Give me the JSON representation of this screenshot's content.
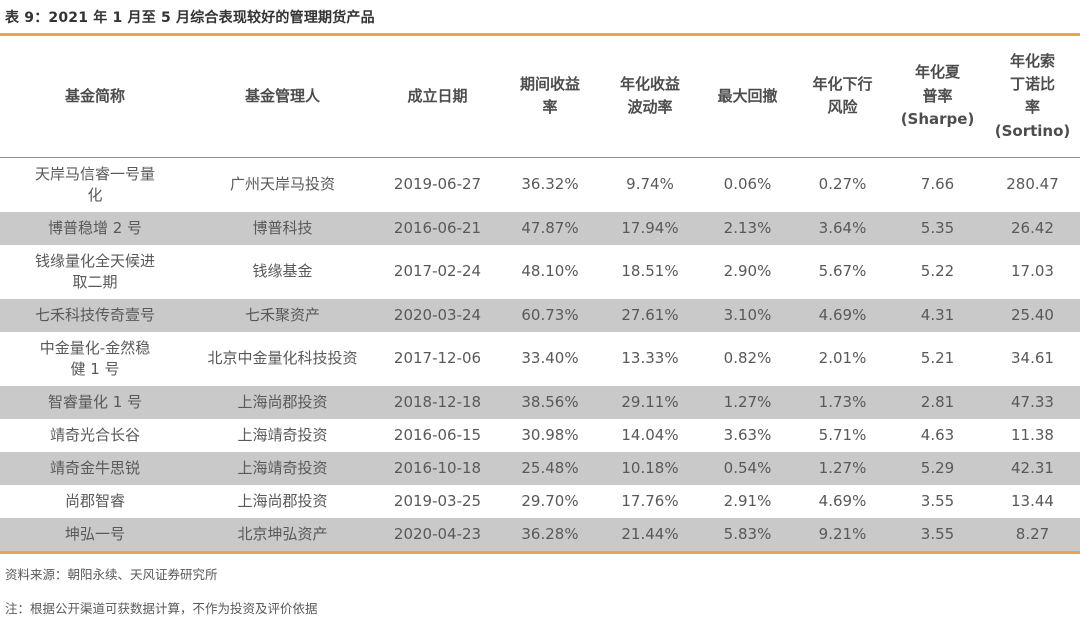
{
  "title": "表 9：2021 年 1 月至 5 月综合表现较好的管理期货产品",
  "source": "资料来源：朝阳永续、天风证券研究所",
  "note": "注：根据公开渠道可获数据计算，不作为投资及评价依据",
  "colors": {
    "accent_orange": "#EFA14E",
    "row_stripe_gray": "#C9C9C9",
    "header_divider_gray": "#8F8F8F",
    "body_text_gray": "#595959",
    "title_text": "#333333"
  },
  "table": {
    "columns": [
      {
        "id": "fund_name",
        "label": "基金简称"
      },
      {
        "id": "manager",
        "label": "基金管理人"
      },
      {
        "id": "inception_date",
        "label": "成立日期"
      },
      {
        "id": "period_return",
        "label": "期间收益\n率"
      },
      {
        "id": "ann_volatility",
        "label": "年化收益\n波动率"
      },
      {
        "id": "max_drawdown",
        "label": "最大回撤"
      },
      {
        "id": "ann_downside_risk",
        "label": "年化下行\n风险"
      },
      {
        "id": "ann_sharpe",
        "label": "年化夏\n普率\n(Sharpe)"
      },
      {
        "id": "ann_sortino",
        "label": "年化索\n丁诺比\n率\n(Sortino)"
      }
    ],
    "rows": [
      [
        "天岸马信睿一号量\n化",
        "广州天岸马投资",
        "2019-06-27",
        "36.32%",
        "9.74%",
        "0.06%",
        "0.27%",
        "7.66",
        "280.47"
      ],
      [
        "博普稳增 2 号",
        "博普科技",
        "2016-06-21",
        "47.87%",
        "17.94%",
        "2.13%",
        "3.64%",
        "5.35",
        "26.42"
      ],
      [
        "钱缘量化全天候进\n取二期",
        "钱缘基金",
        "2017-02-24",
        "48.10%",
        "18.51%",
        "2.90%",
        "5.67%",
        "5.22",
        "17.03"
      ],
      [
        "七禾科技传奇壹号",
        "七禾聚资产",
        "2020-03-24",
        "60.73%",
        "27.61%",
        "3.10%",
        "4.69%",
        "4.31",
        "25.40"
      ],
      [
        "中金量化-金然稳\n健 1 号",
        "北京中金量化科技投资",
        "2017-12-06",
        "33.40%",
        "13.33%",
        "0.82%",
        "2.01%",
        "5.21",
        "34.61"
      ],
      [
        "智睿量化 1 号",
        "上海尚郡投资",
        "2018-12-18",
        "38.56%",
        "29.11%",
        "1.27%",
        "1.73%",
        "2.81",
        "47.33"
      ],
      [
        "靖奇光合长谷",
        "上海靖奇投资",
        "2016-06-15",
        "30.98%",
        "14.04%",
        "3.63%",
        "5.71%",
        "4.63",
        "11.38"
      ],
      [
        "靖奇金牛思锐",
        "上海靖奇投资",
        "2016-10-18",
        "25.48%",
        "10.18%",
        "0.54%",
        "1.27%",
        "5.29",
        "42.31"
      ],
      [
        "尚郡智睿",
        "上海尚郡投资",
        "2019-03-25",
        "29.70%",
        "17.76%",
        "2.91%",
        "4.69%",
        "3.55",
        "13.44"
      ],
      [
        "坤弘一号",
        "北京坤弘资产",
        "2020-04-23",
        "36.28%",
        "21.44%",
        "5.83%",
        "9.21%",
        "3.55",
        "8.27"
      ]
    ]
  }
}
